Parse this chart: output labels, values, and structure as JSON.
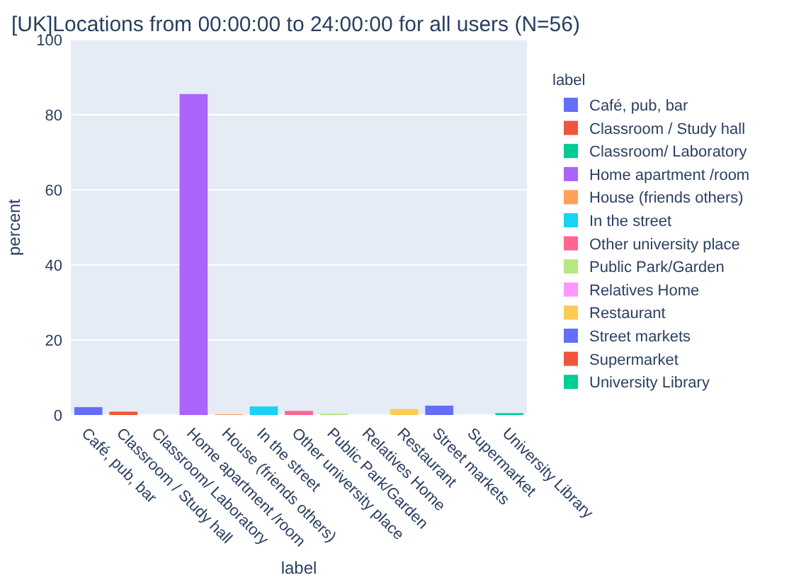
{
  "chart_data": {
    "type": "bar",
    "title": "[UK]Locations from 00:00:00 to 24:00:00 for all users (N=56)",
    "xlabel": "label",
    "ylabel": "percent",
    "legend_title": "label",
    "categories": [
      "Café, pub, bar",
      "Classroom / Study hall",
      "Classroom/ Laboratory",
      "Home apartment /room",
      "House (friends others)",
      "In the street",
      "Other university place",
      "Public Park/Garden",
      "Relatives Home",
      "Restaurant",
      "Street markets",
      "Supermarket",
      "University Library"
    ],
    "series": [
      {
        "name": "Café, pub, bar",
        "color": "#636efa",
        "values": [
          2.1,
          null,
          null,
          null,
          null,
          null,
          null,
          null,
          null,
          null,
          null,
          null,
          null
        ]
      },
      {
        "name": "Classroom / Study hall",
        "color": "#ef553b",
        "values": [
          null,
          0.9,
          null,
          null,
          null,
          null,
          null,
          null,
          null,
          null,
          null,
          null,
          null
        ]
      },
      {
        "name": "Classroom/ Laboratory",
        "color": "#00cc96",
        "values": [
          null,
          null,
          0,
          null,
          null,
          null,
          null,
          null,
          null,
          null,
          null,
          null,
          null
        ]
      },
      {
        "name": "Home apartment /room",
        "color": "#ab63fa",
        "values": [
          null,
          null,
          null,
          85.5,
          null,
          null,
          null,
          null,
          null,
          null,
          null,
          null,
          null
        ]
      },
      {
        "name": "House (friends others)",
        "color": "#ffa15a",
        "values": [
          null,
          null,
          null,
          null,
          0.2,
          null,
          null,
          null,
          null,
          null,
          null,
          null,
          null
        ]
      },
      {
        "name": "In the street",
        "color": "#19d3f3",
        "values": [
          null,
          null,
          null,
          null,
          null,
          2.3,
          null,
          null,
          null,
          null,
          null,
          null,
          null
        ]
      },
      {
        "name": "Other university place",
        "color": "#ff6692",
        "values": [
          null,
          null,
          null,
          null,
          null,
          null,
          1.1,
          null,
          null,
          null,
          null,
          null,
          null
        ]
      },
      {
        "name": "Public Park/Garden",
        "color": "#b6e880",
        "values": [
          null,
          null,
          null,
          null,
          null,
          null,
          null,
          0.4,
          null,
          null,
          null,
          null,
          null
        ]
      },
      {
        "name": "Relatives Home",
        "color": "#ff97ff",
        "values": [
          null,
          null,
          null,
          null,
          null,
          null,
          null,
          null,
          0,
          null,
          null,
          null,
          null
        ]
      },
      {
        "name": "Restaurant",
        "color": "#fecb52",
        "values": [
          null,
          null,
          null,
          null,
          null,
          null,
          null,
          null,
          null,
          1.6,
          null,
          null,
          null
        ]
      },
      {
        "name": "Street markets",
        "color": "#636efa",
        "values": [
          null,
          null,
          null,
          null,
          null,
          null,
          null,
          null,
          null,
          null,
          2.5,
          null,
          null
        ]
      },
      {
        "name": "Supermarket",
        "color": "#ef553b",
        "values": [
          null,
          null,
          null,
          null,
          null,
          null,
          null,
          null,
          null,
          null,
          null,
          0,
          null
        ]
      },
      {
        "name": "University Library",
        "color": "#00cc96",
        "values": [
          null,
          null,
          null,
          null,
          null,
          null,
          null,
          null,
          null,
          null,
          null,
          null,
          0.5
        ]
      }
    ],
    "ylim": [
      0,
      100
    ],
    "yticks": [
      0,
      20,
      40,
      60,
      80,
      100
    ],
    "grid": "y",
    "legend": "right"
  }
}
